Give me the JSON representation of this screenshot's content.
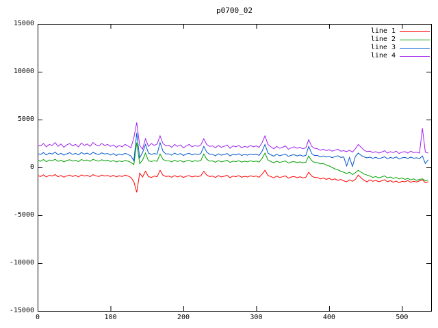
{
  "chart_data": {
    "type": "line",
    "title": "p0700_02",
    "xlabel": "",
    "ylabel": "",
    "xlim": [
      0,
      540
    ],
    "ylim": [
      -15000,
      15000
    ],
    "x_ticks": [
      0,
      100,
      200,
      300,
      400,
      500
    ],
    "y_ticks": [
      -15000,
      -10000,
      -5000,
      0,
      5000,
      10000,
      15000
    ],
    "grid": false,
    "legend_position": "top-right-inside",
    "background_color": "#ffffff",
    "axis_color": "#000000",
    "x_start": 0,
    "x_step": 4,
    "series": [
      {
        "name": "line 1",
        "color": "#ff0000",
        "values": [
          -850,
          -950,
          -780,
          -1000,
          -820,
          -900,
          -750,
          -980,
          -840,
          -1020,
          -880,
          -800,
          -950,
          -830,
          -1000,
          -780,
          -900,
          -820,
          -970,
          -760,
          -880,
          -950,
          -800,
          -900,
          -840,
          -950,
          -830,
          -1000,
          -870,
          -950,
          -800,
          -900,
          -1050,
          -1500,
          -2600,
          -600,
          -1000,
          -400,
          -950,
          -1050,
          -900,
          -980,
          -300,
          -800,
          -950,
          -900,
          -1020,
          -850,
          -1000,
          -880,
          -1050,
          -920,
          -860,
          -1000,
          -900,
          -960,
          -880,
          -400,
          -800,
          -950,
          -900,
          -1050,
          -850,
          -1000,
          -920,
          -830,
          -1080,
          -900,
          -970,
          -860,
          -1020,
          -930,
          -1000,
          -880,
          -960,
          -900,
          -1030,
          -700,
          -300,
          -850,
          -950,
          -1100,
          -900,
          -1050,
          -980,
          -880,
          -1120,
          -1000,
          -950,
          -1080,
          -980,
          -1100,
          -1020,
          -500,
          -900,
          -1050,
          -1050,
          -1200,
          -1100,
          -1250,
          -1150,
          -1300,
          -1200,
          -1350,
          -1250,
          -1400,
          -1500,
          -1300,
          -1450,
          -1250,
          -800,
          -1100,
          -1350,
          -1500,
          -1300,
          -1450,
          -1350,
          -1500,
          -1400,
          -1280,
          -1500,
          -1380,
          -1550,
          -1420,
          -1600,
          -1450,
          -1500,
          -1380,
          -1550,
          -1450,
          -1520,
          -1400,
          -1300,
          -1600,
          -1500
        ]
      },
      {
        "name": "line 2",
        "color": "#00a000",
        "values": [
          750,
          650,
          820,
          600,
          780,
          700,
          850,
          630,
          760,
          580,
          720,
          800,
          660,
          750,
          610,
          830,
          700,
          780,
          640,
          850,
          720,
          650,
          800,
          700,
          760,
          620,
          720,
          570,
          680,
          600,
          740,
          650,
          520,
          300,
          2600,
          400,
          750,
          1500,
          700,
          620,
          700,
          650,
          1400,
          850,
          680,
          700,
          580,
          760,
          620,
          720,
          560,
          680,
          740,
          600,
          700,
          640,
          720,
          1400,
          850,
          660,
          680,
          540,
          720,
          580,
          650,
          740,
          520,
          660,
          600,
          700,
          560,
          650,
          580,
          690,
          610,
          660,
          560,
          950,
          1500,
          780,
          620,
          480,
          660,
          520,
          590,
          680,
          450,
          570,
          610,
          500,
          580,
          470,
          540,
          1200,
          700,
          520,
          500,
          380,
          420,
          250,
          150,
          0,
          -150,
          -250,
          -400,
          -500,
          -650,
          -500,
          -750,
          -550,
          -300,
          -500,
          -700,
          -800,
          -900,
          -1050,
          -950,
          -1100,
          -1000,
          -880,
          -1100,
          -1000,
          -1150,
          -1050,
          -1200,
          -1100,
          -1250,
          -1150,
          -1300,
          -1200,
          -1350,
          -1250,
          -1200,
          -1400,
          -1300
        ]
      },
      {
        "name": "line 3",
        "color": "#0055cc",
        "values": [
          1450,
          1350,
          1550,
          1300,
          1500,
          1400,
          1600,
          1320,
          1480,
          1280,
          1420,
          1540,
          1360,
          1470,
          1310,
          1560,
          1400,
          1500,
          1330,
          1580,
          1430,
          1350,
          1520,
          1400,
          1460,
          1300,
          1450,
          1250,
          1400,
          1300,
          1480,
          1350,
          1200,
          700,
          3600,
          1000,
          1550,
          2400,
          1500,
          1350,
          1450,
          1380,
          2600,
          1700,
          1400,
          1420,
          1280,
          1500,
          1320,
          1450,
          1250,
          1400,
          1480,
          1300,
          1420,
          1350,
          1450,
          2200,
          1600,
          1380,
          1380,
          1220,
          1420,
          1280,
          1350,
          1450,
          1200,
          1380,
          1300,
          1420,
          1250,
          1360,
          1280,
          1400,
          1320,
          1380,
          1260,
          1700,
          2400,
          1500,
          1320,
          1180,
          1380,
          1220,
          1300,
          1400,
          1150,
          1280,
          1330,
          1200,
          1300,
          1180,
          1260,
          2200,
          1450,
          1250,
          1250,
          1100,
          1200,
          1080,
          1150,
          1020,
          1120,
          1220,
          1050,
          1100,
          150,
          1050,
          100,
          1150,
          1500,
          1250,
          1100,
          1000,
          1080,
          950,
          1050,
          920,
          1000,
          1120,
          900,
          1040,
          960,
          1100,
          880,
          1000,
          1050,
          930,
          1080,
          960,
          1010,
          920,
          1200,
          400,
          800
        ]
      },
      {
        "name": "line 4",
        "color": "#a020f0",
        "values": [
          2350,
          2250,
          2500,
          2150,
          2400,
          2300,
          2600,
          2200,
          2450,
          2100,
          2350,
          2500,
          2250,
          2400,
          2150,
          2550,
          2300,
          2450,
          2200,
          2600,
          2350,
          2250,
          2500,
          2300,
          2400,
          2200,
          2350,
          2100,
          2300,
          2150,
          2400,
          2250,
          2050,
          3100,
          4700,
          2300,
          1900,
          3000,
          2200,
          2500,
          2300,
          2450,
          3300,
          2500,
          2250,
          2300,
          2100,
          2400,
          2200,
          2350,
          2050,
          2250,
          2400,
          2150,
          2300,
          2200,
          2350,
          3000,
          2400,
          2200,
          2250,
          2050,
          2300,
          2100,
          2200,
          2350,
          2000,
          2250,
          2150,
          2300,
          2050,
          2200,
          2100,
          2300,
          2150,
          2250,
          2100,
          2600,
          3300,
          2400,
          2150,
          1950,
          2200,
          2000,
          2100,
          2250,
          1900,
          2050,
          2150,
          2000,
          2100,
          1950,
          2050,
          2900,
          2200,
          2000,
          1950,
          1800,
          1900,
          1750,
          1850,
          1700,
          1800,
          1900,
          1700,
          1750,
          1650,
          1800,
          1600,
          1950,
          2400,
          2100,
          1800,
          1650,
          1700,
          1550,
          1650,
          1500,
          1600,
          1750,
          1500,
          1650,
          1550,
          1700,
          1450,
          1600,
          1650,
          1500,
          1700,
          1550,
          1600,
          1500,
          4100,
          1600,
          1500
        ]
      }
    ]
  }
}
